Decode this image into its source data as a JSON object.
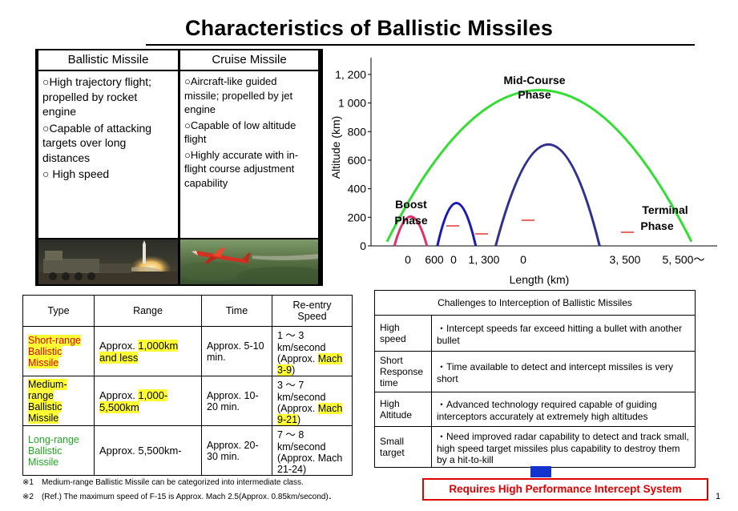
{
  "title": "Characteristics of Ballistic Missiles",
  "comparison": {
    "ballistic": {
      "heading": "Ballistic Missile",
      "points": [
        "○High trajectory flight; propelled by rocket engine",
        "○Capable of attacking targets over long distances",
        "○ High speed"
      ]
    },
    "cruise": {
      "heading": "Cruise Missile",
      "points": [
        "○Aircraft-like guided missile; propelled by jet engine",
        "○Capable of low altitude flight",
        "○Highly accurate with in-flight course adjustment capability"
      ]
    }
  },
  "chart_data": {
    "type": "line",
    "xlabel": "Length (km)",
    "ylabel": "Altitude (km)",
    "y_ticks": [
      "0",
      "200",
      "400",
      "600",
      "800",
      "1 000",
      "1, 200"
    ],
    "ylim": [
      0,
      1250
    ],
    "x_tick_labels": [
      "0",
      "600",
      "0",
      "1, 300",
      "0",
      "3, 500",
      "5, 500～"
    ],
    "grid": false,
    "series": [
      {
        "color": "#33dd33",
        "points": [
          [
            0,
            30
          ],
          [
            2900,
            1090
          ],
          [
            5800,
            30
          ]
        ]
      },
      {
        "color": "#e0306a",
        "points": [
          [
            140,
            0
          ],
          [
            450,
            205
          ],
          [
            760,
            0
          ]
        ]
      },
      {
        "color": "#1a1ab8",
        "points": [
          [
            960,
            0
          ],
          [
            1320,
            300
          ],
          [
            1690,
            0
          ]
        ]
      },
      {
        "color": "#303090",
        "points": [
          [
            2070,
            0
          ],
          [
            3090,
            710
          ],
          [
            4050,
            0
          ]
        ]
      }
    ],
    "annotations": [
      {
        "text": "Mid-Course Phase"
      },
      {
        "text": "Boost Phase"
      },
      {
        "text": "Terminal Phase"
      }
    ]
  },
  "range_table": {
    "headers": [
      "Type",
      "Range",
      "Time",
      "Re-entry Speed"
    ],
    "rows": [
      {
        "type": "Short-range Ballistic Missile",
        "range_pre": "Approx. ",
        "range_hl": "1,000km and less",
        "time": "Approx. 5-10 min.",
        "speed_a": "1 ～ 3 km/second",
        "speed_b": "(Approx. ",
        "speed_hl": "Mach 3-9",
        "speed_c": ")"
      },
      {
        "type": "Medium-range Ballistic Missile",
        "range_pre": "Approx. ",
        "range_hl": "1,000-5,500km",
        "time": "Approx. 10-20 min.",
        "speed_a": "3 ～ 7 km/second",
        "speed_b": "(Approx. ",
        "speed_hl": "Mach 9-21",
        "speed_c": ")"
      },
      {
        "type": "Long-range Ballistic Missile",
        "range_pre": "Approx. 5,500km-",
        "range_hl": "",
        "time": "Approx. 20-30 min.",
        "speed_a": "7 ～ 8 km/second",
        "speed_b": "(Approx. Mach 21-24)",
        "speed_hl": "",
        "speed_c": ""
      }
    ]
  },
  "challenges": {
    "title": "Challenges to Interception of Ballistic Missiles",
    "rows": [
      {
        "label": "High speed",
        "text": "・Intercept speeds far exceed hitting a bullet with another bullet"
      },
      {
        "label": "Short Response time",
        "text": "・Time available to detect and intercept missiles is very short"
      },
      {
        "label": "High Altitude",
        "text": "・Advanced technology required capable of guiding interceptors accurately at extremely high altitudes"
      },
      {
        "label": "Small target",
        "text": "・Need improved radar capability to detect and track small, high speed target missiles plus capability to destroy them by a hit-to-kill"
      }
    ]
  },
  "notes": [
    "※1　Medium-range Ballistic Missile can be categorized into intermediate class.",
    "※2　(Ref.) The maximum speed of F-15 is Approx. Mach 2.5(Approx. 0.85km/second)．"
  ],
  "banner": "Requires High Performance Intercept System",
  "page_number": "1",
  "colors": {
    "highlight": "#ffff33",
    "banner_red": "#e00000",
    "arrow_blue": "#1233cc"
  }
}
